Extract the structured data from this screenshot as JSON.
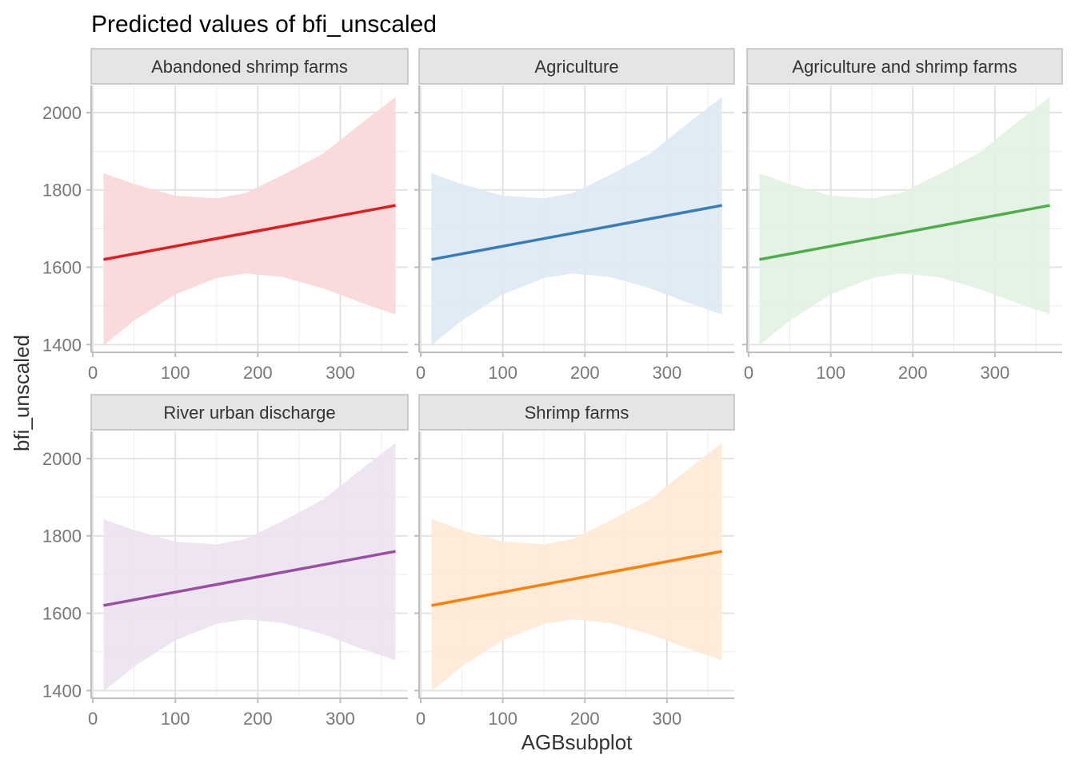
{
  "chart_data": {
    "type": "line",
    "title": "Predicted values of bfi_unscaled",
    "xlabel": "AGBsubplot",
    "ylabel": "bfi_unscaled",
    "xlim": [
      -2,
      382
    ],
    "ylim": [
      1380,
      2070
    ],
    "x_ticks": [
      0,
      100,
      200,
      300
    ],
    "x_minor_ticks": [
      50,
      150,
      250,
      350
    ],
    "y_ticks": [
      1400,
      1600,
      1800,
      2000
    ],
    "y_minor_ticks": [
      1500,
      1700,
      1900
    ],
    "band_lower": [
      [
        13,
        1398
      ],
      [
        50,
        1462
      ],
      [
        100,
        1530
      ],
      [
        150,
        1572
      ],
      [
        185,
        1584
      ],
      [
        230,
        1575
      ],
      [
        280,
        1545
      ],
      [
        330,
        1505
      ],
      [
        367,
        1478
      ]
    ],
    "band_upper": [
      [
        13,
        1843
      ],
      [
        50,
        1815
      ],
      [
        100,
        1785
      ],
      [
        150,
        1778
      ],
      [
        185,
        1792
      ],
      [
        230,
        1838
      ],
      [
        280,
        1895
      ],
      [
        330,
        1980
      ],
      [
        367,
        2040
      ]
    ],
    "line": [
      [
        13,
        1620
      ],
      [
        367,
        1760
      ]
    ],
    "panels": [
      {
        "label": "Abandoned shrimp farms",
        "color": "#E41A1C",
        "fill": "#F8D7D8"
      },
      {
        "label": "Agriculture",
        "color": "#377EB8",
        "fill": "#DDE9F4"
      },
      {
        "label": "Agriculture and shrimp farms",
        "color": "#4DAF4A",
        "fill": "#E1F2E1"
      },
      {
        "label": "River urban discharge",
        "color": "#984EA3",
        "fill": "#EDE1F0"
      },
      {
        "label": "Shrimp farms",
        "color": "#FF7F00",
        "fill": "#FFE9D6"
      }
    ]
  }
}
